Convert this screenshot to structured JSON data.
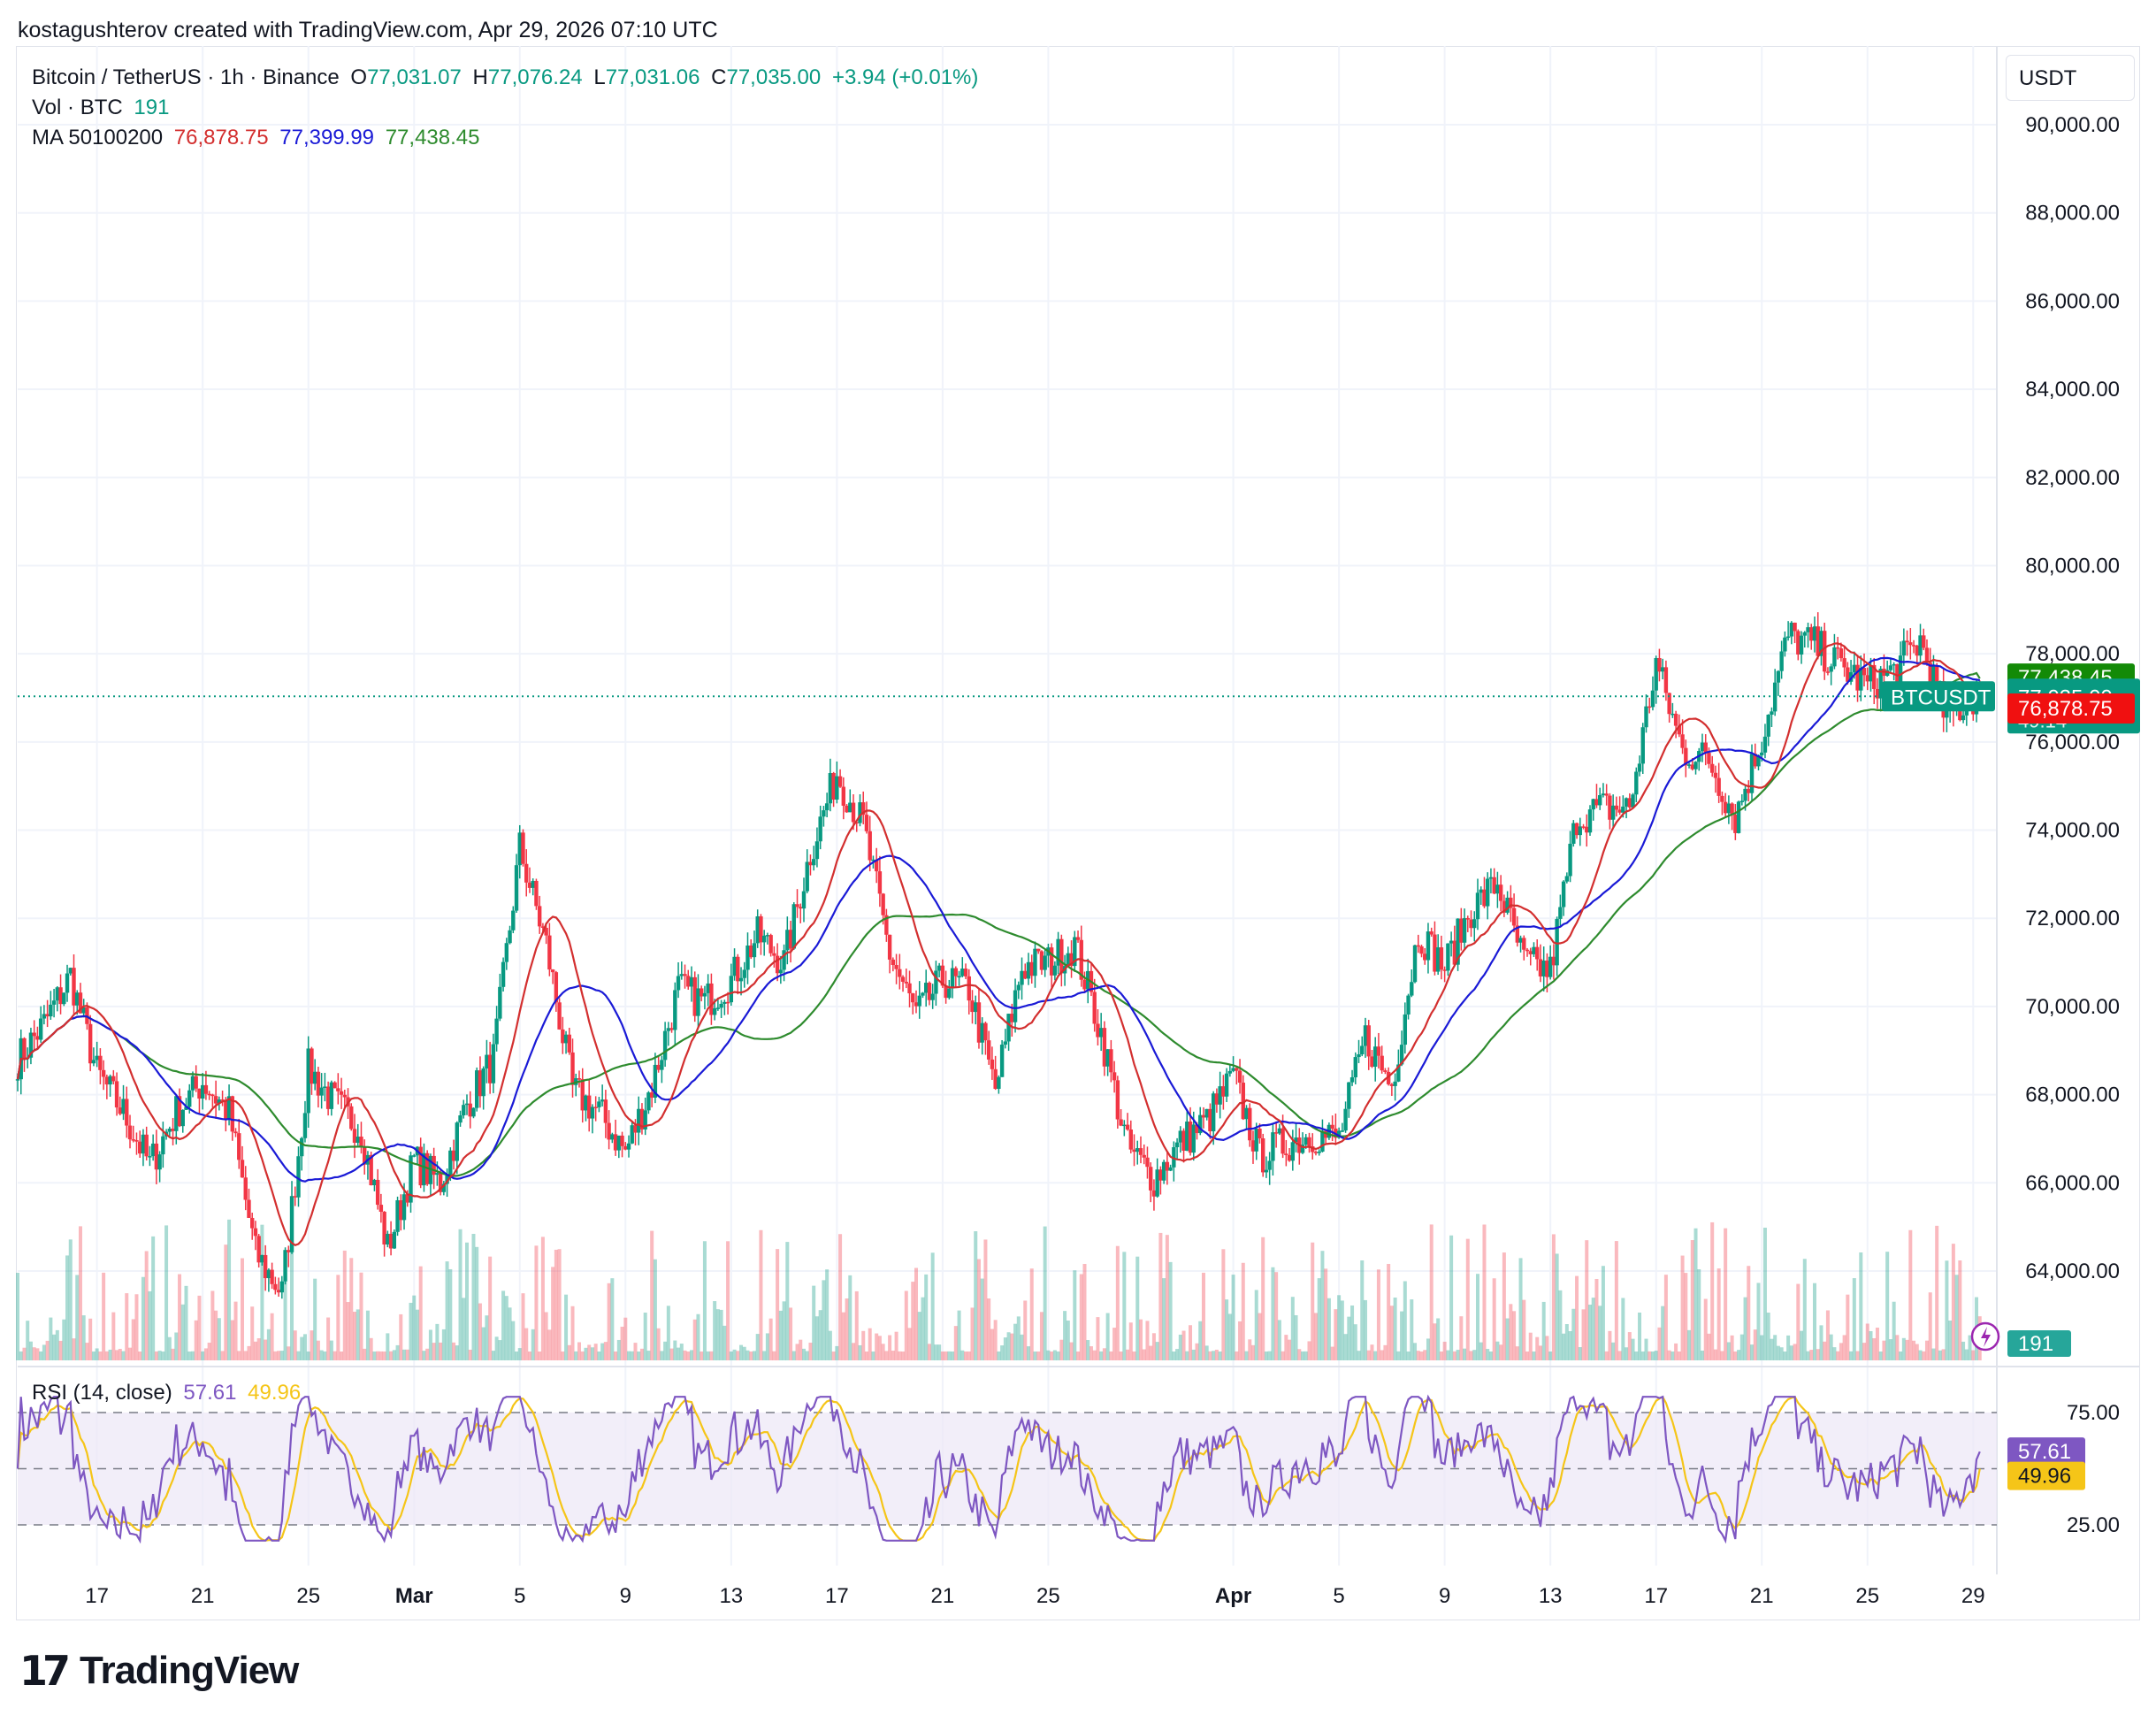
{
  "credit": "kostagushterov created with TradingView.com, Apr 29, 2026 07:10 UTC",
  "brand": {
    "mark": "17",
    "name": "TradingView"
  },
  "unit": "USDT",
  "legend": {
    "symbol": "Bitcoin / TetherUS · 1h · Binance",
    "open_label": "O",
    "open": "77,031.07",
    "high_label": "H",
    "high": "77,076.24",
    "low_label": "L",
    "low": "77,031.06",
    "close_label": "C",
    "close": "77,035.00",
    "change": "+3.94 (+0.01%)",
    "vol_label": "Vol · BTC",
    "vol": "191",
    "ma_label": "MA 50100200",
    "ma50": "76,878.75",
    "ma100": "77,399.99",
    "ma200": "77,438.45"
  },
  "rsi_legend": {
    "label": "RSI (14, close)",
    "rsi": "57.61",
    "ma": "49.96"
  },
  "badges": {
    "ma200": "77,438.45",
    "ma100": "77,399.99",
    "symbol": "BTCUSDT",
    "price": "77,035.00",
    "countdown": "49:14",
    "ma50": "76,878.75",
    "volume": "191",
    "rsi": "57.61",
    "rsi_ma": "49.96"
  },
  "colors": {
    "up": "#089981",
    "down": "#f23645",
    "ma50": "#d32f2f",
    "ma100": "#1a1ad6",
    "ma200": "#2e8b2e",
    "rsi": "#7e57c2",
    "rsi_ma": "#f5c518",
    "rsi_band": "#ede7f6"
  },
  "chart_data": {
    "type": "candlestick",
    "symbol": "BTCUSDT",
    "timeframe": "1h",
    "y_price_ticks": [
      "90,000.00",
      "88,000.00",
      "86,000.00",
      "84,000.00",
      "82,000.00",
      "80,000.00",
      "78,000.00",
      "76,000.00",
      "74,000.00",
      "72,000.00",
      "70,000.00",
      "68,000.00",
      "66,000.00",
      "64,000.00"
    ],
    "y_price_tick_values": [
      90000,
      88000,
      86000,
      84000,
      82000,
      80000,
      78000,
      76000,
      74000,
      72000,
      70000,
      68000,
      66000,
      64000
    ],
    "ylim": [
      62000,
      91000
    ],
    "rsi_ticks": [
      "75.00",
      "25.00"
    ],
    "rsi_tick_values": [
      75,
      25
    ],
    "rsi_ylim": [
      10,
      90
    ],
    "x_ticks": [
      "17",
      "21",
      "25",
      "Mar",
      "5",
      "9",
      "13",
      "17",
      "21",
      "25",
      "Apr",
      "5",
      "9",
      "13",
      "17",
      "21",
      "25",
      "29"
    ],
    "x_tick_dates": [
      "2026-02-17",
      "2026-02-21",
      "2026-02-25",
      "2026-03-01",
      "2026-03-05",
      "2026-03-09",
      "2026-03-13",
      "2026-03-17",
      "2026-03-21",
      "2026-03-25",
      "2026-04-01",
      "2026-04-05",
      "2026-04-09",
      "2026-04-13",
      "2026-04-17",
      "2026-04-21",
      "2026-04-25",
      "2026-04-29"
    ],
    "price_path": [
      [
        "2026-02-14",
        68800
      ],
      [
        "2026-02-15",
        69600
      ],
      [
        "2026-02-16",
        70700
      ],
      [
        "2026-02-17",
        68500
      ],
      [
        "2026-02-18",
        67600
      ],
      [
        "2026-02-19",
        66400
      ],
      [
        "2026-02-20",
        67600
      ],
      [
        "2026-02-21",
        68300
      ],
      [
        "2026-02-22",
        67600
      ],
      [
        "2026-02-23",
        64400
      ],
      [
        "2026-02-24",
        63500
      ],
      [
        "2026-02-25",
        68600
      ],
      [
        "2026-02-26",
        67800
      ],
      [
        "2026-02-27",
        67200
      ],
      [
        "2026-02-28",
        64500
      ],
      [
        "2026-03-01",
        66500
      ],
      [
        "2026-03-02",
        66000
      ],
      [
        "2026-03-03",
        67800
      ],
      [
        "2026-03-04",
        68800
      ],
      [
        "2026-03-05",
        73600
      ],
      [
        "2026-03-06",
        71400
      ],
      [
        "2026-03-07",
        68100
      ],
      [
        "2026-03-08",
        67600
      ],
      [
        "2026-03-09",
        66700
      ],
      [
        "2026-03-10",
        68200
      ],
      [
        "2026-03-11",
        70400
      ],
      [
        "2026-03-12",
        70100
      ],
      [
        "2026-03-13",
        70600
      ],
      [
        "2026-03-14",
        71600
      ],
      [
        "2026-03-15",
        71000
      ],
      [
        "2026-03-16",
        73500
      ],
      [
        "2026-03-17",
        75300
      ],
      [
        "2026-03-18",
        74100
      ],
      [
        "2026-03-19",
        71200
      ],
      [
        "2026-03-20",
        69800
      ],
      [
        "2026-03-21",
        70600
      ],
      [
        "2026-03-22",
        70400
      ],
      [
        "2026-03-23",
        68100
      ],
      [
        "2026-03-24",
        70900
      ],
      [
        "2026-03-25",
        71000
      ],
      [
        "2026-03-26",
        71400
      ],
      [
        "2026-03-27",
        69400
      ],
      [
        "2026-03-28",
        66800
      ],
      [
        "2026-03-29",
        66100
      ],
      [
        "2026-03-30",
        66900
      ],
      [
        "2026-03-31",
        67400
      ],
      [
        "2026-04-01",
        68400
      ],
      [
        "2026-04-02",
        66600
      ],
      [
        "2026-04-03",
        66900
      ],
      [
        "2026-04-04",
        67100
      ],
      [
        "2026-04-05",
        67000
      ],
      [
        "2026-04-06",
        69300
      ],
      [
        "2026-04-07",
        68200
      ],
      [
        "2026-04-08",
        71700
      ],
      [
        "2026-04-09",
        70900
      ],
      [
        "2026-04-10",
        72200
      ],
      [
        "2026-04-11",
        72800
      ],
      [
        "2026-04-12",
        71000
      ],
      [
        "2026-04-13",
        70800
      ],
      [
        "2026-04-14",
        74300
      ],
      [
        "2026-04-15",
        74500
      ],
      [
        "2026-04-16",
        74500
      ],
      [
        "2026-04-17",
        77800
      ],
      [
        "2026-04-18",
        75800
      ],
      [
        "2026-04-19",
        75600
      ],
      [
        "2026-04-20",
        74300
      ],
      [
        "2026-04-21",
        76100
      ],
      [
        "2026-04-22",
        78400
      ],
      [
        "2026-04-23",
        78200
      ],
      [
        "2026-04-24",
        77700
      ],
      [
        "2026-04-25",
        77300
      ],
      [
        "2026-04-26",
        77600
      ],
      [
        "2026-04-27",
        78300
      ],
      [
        "2026-04-28",
        76500
      ],
      [
        "2026-04-29",
        77035
      ]
    ],
    "last_price": 77035.0,
    "moving_averages": [
      {
        "name": "MA 50",
        "last": 76878.75
      },
      {
        "name": "MA 100",
        "last": 77399.99
      },
      {
        "name": "MA 200",
        "last": 77438.45
      }
    ],
    "volume_last": 191,
    "rsi_last": 57.61,
    "rsi_ma_last": 49.96
  }
}
